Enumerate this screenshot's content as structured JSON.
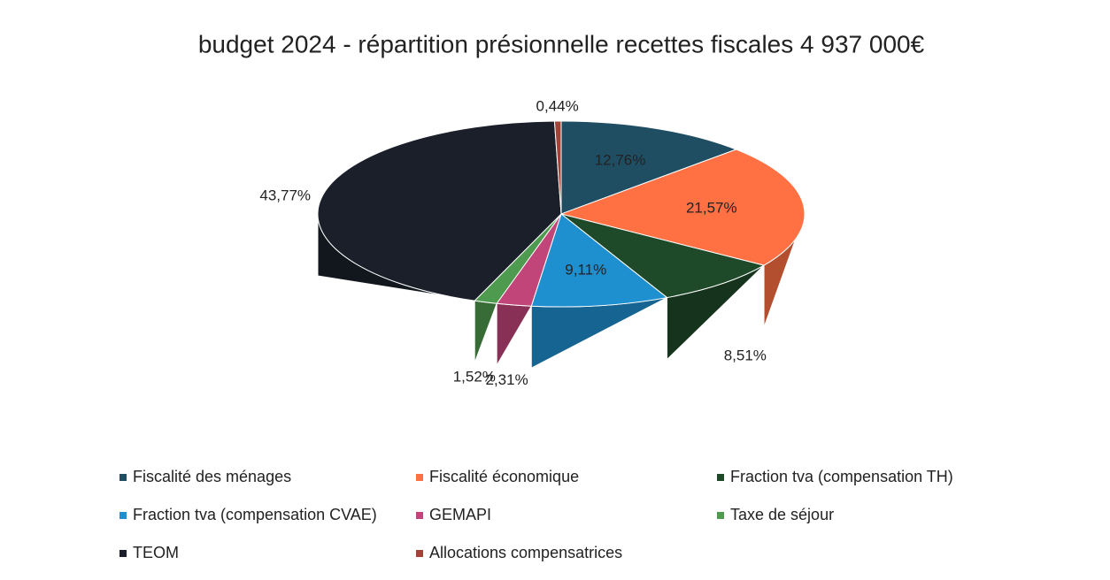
{
  "chart_data": {
    "type": "pie",
    "title": "budget 2024 - répartition présionnelle recettes fiscales 4 937 000€",
    "categories": [
      "Fiscalité des ménages",
      "Fiscalité économique",
      "Fraction tva (compensation TH)",
      "Fraction tva (compensation CVAE)",
      "GEMAPI",
      "Taxe de séjour",
      "TEOM",
      "Allocations compensatrices"
    ],
    "values": [
      12.76,
      21.57,
      8.51,
      9.11,
      2.31,
      1.52,
      43.77,
      0.44
    ],
    "value_labels": [
      "12,76%",
      "21,57%",
      "8,51%",
      "9,11%",
      "2,31%",
      "1,52%",
      "43,77%",
      "0,44%"
    ],
    "colors": [
      "#1f4e63",
      "#ff7043",
      "#1f4a2a",
      "#1e8fcf",
      "#c2457a",
      "#4e9a4e",
      "#1a1f2a",
      "#a0443a"
    ]
  }
}
